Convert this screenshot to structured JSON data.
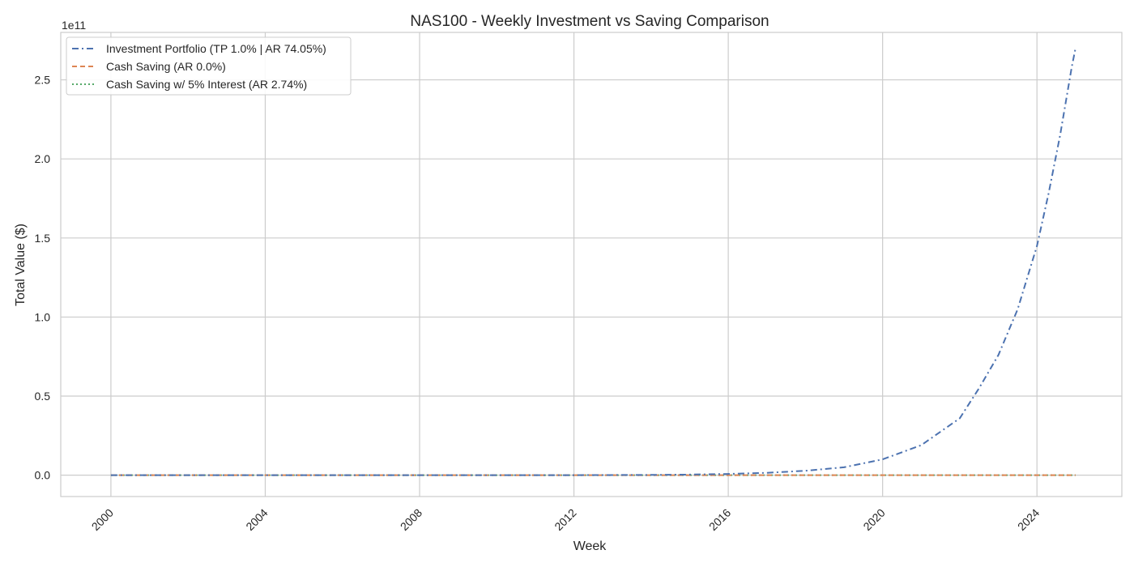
{
  "chart_data": {
    "type": "line",
    "title": "NAS100 - Weekly Investment vs Saving Comparison",
    "xlabel": "Week",
    "ylabel": "Total Value ($)",
    "y_offset_text": "1e11",
    "xlim": [
      1998.7,
      2026.2
    ],
    "ylim": [
      -0.135,
      2.8
    ],
    "x_ticks": [
      2000,
      2004,
      2008,
      2012,
      2016,
      2020,
      2024
    ],
    "x_tick_labels": [
      "2000",
      "2004",
      "2008",
      "2012",
      "2016",
      "2020",
      "2024"
    ],
    "y_ticks": [
      0.0,
      0.5,
      1.0,
      1.5,
      2.0,
      2.5
    ],
    "y_tick_labels": [
      "0.0",
      "0.5",
      "1.0",
      "1.5",
      "2.0",
      "2.5"
    ],
    "grid": true,
    "legend_position": "upper-left",
    "series": [
      {
        "name": "Investment Portfolio (TP 1.0% | AR 74.05%)",
        "color": "#4c72b0",
        "style": "dashdot",
        "x": [
          2000,
          2004,
          2008,
          2012,
          2014,
          2015,
          2016,
          2017,
          2018,
          2019,
          2020,
          2021,
          2022,
          2022.5,
          2023,
          2023.5,
          2024,
          2024.3,
          2024.6,
          2024.9,
          2025
        ],
        "y": [
          0.0,
          0.0,
          0.0,
          0.0,
          0.002,
          0.004,
          0.008,
          0.015,
          0.028,
          0.05,
          0.1,
          0.19,
          0.36,
          0.55,
          0.76,
          1.05,
          1.45,
          1.78,
          2.15,
          2.58,
          2.7
        ]
      },
      {
        "name": "Cash Saving (AR 0.0%)",
        "color": "#dd8452",
        "style": "dashed",
        "x": [
          2000,
          2025
        ],
        "y": [
          0.0,
          0.0
        ]
      },
      {
        "name": "Cash Saving w/ 5% Interest (AR 2.74%)",
        "color": "#55a868",
        "style": "dotted",
        "x": [
          2000,
          2025
        ],
        "y": [
          0.0,
          0.0
        ]
      }
    ]
  }
}
